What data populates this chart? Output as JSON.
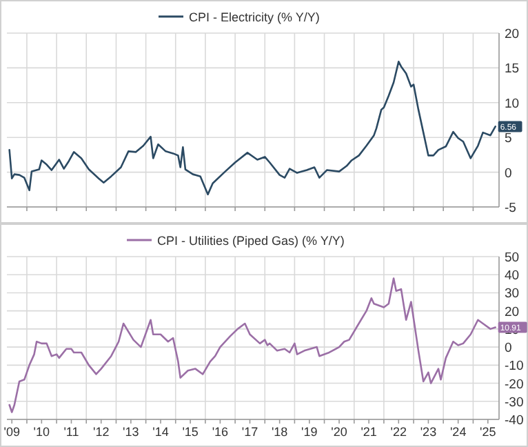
{
  "chart_data": [
    {
      "type": "line",
      "tick_labels": "y",
      "grid": true,
      "legend": "top",
      "xlim": [
        "2009-05-01",
        "2025-11-15"
      ],
      "xticks": [
        {
          "value": "2010-01-01",
          "label": null
        },
        {
          "value": "2011-01-01",
          "label": null
        },
        {
          "value": "2012-01-01",
          "label": null
        },
        {
          "value": "2013-01-01",
          "label": null
        },
        {
          "value": "2014-01-01",
          "label": null
        },
        {
          "value": "2015-01-01",
          "label": null
        },
        {
          "value": "2016-01-01",
          "label": null
        },
        {
          "value": "2017-01-01",
          "label": null
        },
        {
          "value": "2018-01-01",
          "label": null
        },
        {
          "value": "2019-01-01",
          "label": null
        },
        {
          "value": "2020-01-01",
          "label": null
        },
        {
          "value": "2021-01-01",
          "label": null
        },
        {
          "value": "2022-01-01",
          "label": null
        },
        {
          "value": "2023-01-01",
          "label": null
        },
        {
          "value": "2024-01-01",
          "label": null
        },
        {
          "value": "2025-01-01",
          "label": null
        }
      ],
      "ylim": [
        -5,
        20
      ],
      "yticks": [
        -5,
        0,
        5,
        10,
        15,
        20
      ],
      "annotations": [
        {
          "text": "6.56",
          "x": "2025-10",
          "y": 6.56
        }
      ],
      "series": [
        {
          "name": "CPI - Electricity (% Y/Y)",
          "color": "#2b4a63",
          "x": [
            "2009-06",
            "2009-07",
            "2009-08",
            "2009-10",
            "2009-12",
            "2010-02",
            "2010-03",
            "2010-06",
            "2010-07",
            "2010-09",
            "2010-11",
            "2011-02",
            "2011-04",
            "2011-06",
            "2011-08",
            "2011-11",
            "2012-02",
            "2012-06",
            "2012-08",
            "2012-11",
            "2013-03",
            "2013-06",
            "2013-09",
            "2013-12",
            "2014-03",
            "2014-04",
            "2014-06",
            "2014-09",
            "2014-12",
            "2015-02",
            "2015-03",
            "2015-04",
            "2015-05",
            "2015-08",
            "2015-11",
            "2016-02",
            "2016-04",
            "2016-09",
            "2017-01",
            "2017-06",
            "2017-10",
            "2018-01",
            "2018-03",
            "2018-07",
            "2018-09",
            "2018-11",
            "2019-02",
            "2019-06",
            "2019-09",
            "2019-11",
            "2020-02",
            "2020-07",
            "2020-10",
            "2020-12",
            "2021-03",
            "2021-06",
            "2021-09",
            "2021-10",
            "2021-12",
            "2022-01",
            "2022-03",
            "2022-05",
            "2022-07",
            "2022-08",
            "2022-10",
            "2022-12",
            "2023-01",
            "2023-03",
            "2023-05",
            "2023-07",
            "2023-09",
            "2023-11",
            "2024-02",
            "2024-05",
            "2024-07",
            "2024-09",
            "2024-12",
            "2025-03",
            "2025-05",
            "2025-08",
            "2025-10"
          ],
          "values": [
            3.2,
            -0.9,
            -0.3,
            -0.4,
            -0.8,
            -2.6,
            0.1,
            0.4,
            1.7,
            1.1,
            0.3,
            1.8,
            0.5,
            1.6,
            2.9,
            2.0,
            0.4,
            -0.9,
            -1.5,
            -0.6,
            0.7,
            3.0,
            2.9,
            3.8,
            5.1,
            2.0,
            4.0,
            3.0,
            2.7,
            2.4,
            0.7,
            3.6,
            0.4,
            -0.3,
            -0.6,
            -3.2,
            -1.6,
            0.1,
            1.4,
            2.8,
            1.8,
            2.2,
            1.4,
            -0.4,
            -0.8,
            0.5,
            -0.1,
            0.3,
            0.7,
            -0.8,
            0.3,
            0.1,
            0.9,
            1.7,
            2.4,
            3.8,
            5.3,
            6.3,
            9.0,
            9.3,
            11.0,
            12.9,
            15.9,
            15.2,
            14.2,
            12.3,
            12.6,
            9.0,
            5.7,
            2.4,
            2.4,
            3.2,
            3.7,
            5.8,
            4.9,
            4.4,
            2.0,
            3.8,
            5.7,
            5.3,
            6.56
          ]
        }
      ]
    },
    {
      "type": "line",
      "grid": true,
      "legend": "top",
      "xlim": [
        "2009-05-01",
        "2025-11-15"
      ],
      "xticks": [
        {
          "value": "2009-07-01",
          "label": "'09"
        },
        {
          "value": "2010-01-01",
          "label": null
        },
        {
          "value": "2010-07-01",
          "label": "'10"
        },
        {
          "value": "2011-01-01",
          "label": null
        },
        {
          "value": "2011-07-01",
          "label": "'11"
        },
        {
          "value": "2012-01-01",
          "label": null
        },
        {
          "value": "2012-07-01",
          "label": "'12"
        },
        {
          "value": "2013-01-01",
          "label": null
        },
        {
          "value": "2013-07-01",
          "label": "'13"
        },
        {
          "value": "2014-01-01",
          "label": null
        },
        {
          "value": "2014-07-01",
          "label": "'14"
        },
        {
          "value": "2015-01-01",
          "label": null
        },
        {
          "value": "2015-07-01",
          "label": "'15"
        },
        {
          "value": "2016-01-01",
          "label": null
        },
        {
          "value": "2016-07-01",
          "label": "'16"
        },
        {
          "value": "2017-01-01",
          "label": null
        },
        {
          "value": "2017-07-01",
          "label": "'17"
        },
        {
          "value": "2018-01-01",
          "label": null
        },
        {
          "value": "2018-07-01",
          "label": "'18"
        },
        {
          "value": "2019-01-01",
          "label": null
        },
        {
          "value": "2019-07-01",
          "label": "'19"
        },
        {
          "value": "2020-01-01",
          "label": null
        },
        {
          "value": "2020-07-01",
          "label": "'20"
        },
        {
          "value": "2021-01-01",
          "label": null
        },
        {
          "value": "2021-07-01",
          "label": "'21"
        },
        {
          "value": "2022-01-01",
          "label": null
        },
        {
          "value": "2022-07-01",
          "label": "'22"
        },
        {
          "value": "2023-01-01",
          "label": null
        },
        {
          "value": "2023-07-01",
          "label": "'23"
        },
        {
          "value": "2024-01-01",
          "label": null
        },
        {
          "value": "2024-07-01",
          "label": "'24"
        },
        {
          "value": "2025-01-01",
          "label": null
        },
        {
          "value": "2025-07-01",
          "label": "'25"
        }
      ],
      "ylim": [
        -40,
        50
      ],
      "yticks": [
        -40,
        -30,
        -20,
        -10,
        0,
        10,
        20,
        30,
        40,
        50
      ],
      "annotations": [
        {
          "text": "10.91",
          "x": "2025-10",
          "y": 10.91
        }
      ],
      "series": [
        {
          "name": "CPI - Utilities (Piped Gas) (% Y/Y)",
          "color": "#9b6fa6",
          "x": [
            "2009-06",
            "2009-07",
            "2009-08",
            "2009-10",
            "2009-12",
            "2010-02",
            "2010-04",
            "2010-05",
            "2010-07",
            "2010-09",
            "2010-11",
            "2011-01",
            "2011-02",
            "2011-05",
            "2011-07",
            "2011-08",
            "2011-11",
            "2012-02",
            "2012-05",
            "2012-07",
            "2012-11",
            "2013-02",
            "2013-04",
            "2013-08",
            "2013-11",
            "2014-03",
            "2014-04",
            "2014-07",
            "2014-10",
            "2014-12",
            "2015-02",
            "2015-03",
            "2015-06",
            "2015-09",
            "2015-12",
            "2016-03",
            "2016-05",
            "2016-07",
            "2016-11",
            "2017-02",
            "2017-05",
            "2017-07",
            "2017-11",
            "2018-01",
            "2018-02",
            "2018-03",
            "2018-06",
            "2018-09",
            "2018-11",
            "2019-01",
            "2019-02",
            "2019-05",
            "2019-10",
            "2019-11",
            "2020-03",
            "2020-07",
            "2020-09",
            "2020-11",
            "2021-02",
            "2021-06",
            "2021-08",
            "2021-09",
            "2022-01",
            "2022-03",
            "2022-05",
            "2022-06",
            "2022-08",
            "2022-10",
            "2022-12",
            "2023-03",
            "2023-05",
            "2023-07",
            "2023-08",
            "2023-11",
            "2023-12",
            "2024-02",
            "2024-05",
            "2024-07",
            "2024-09",
            "2024-12",
            "2025-03",
            "2025-05",
            "2025-08",
            "2025-10"
          ],
          "values": [
            -32,
            -36,
            -32,
            -19,
            -18,
            -10,
            -4,
            3,
            2,
            2,
            -5,
            -4,
            -6,
            -1,
            -1,
            -3,
            -3,
            -10,
            -15,
            -12,
            -5,
            3,
            13,
            4,
            0,
            15,
            7,
            7,
            3,
            5,
            -8,
            -17,
            -13,
            -12,
            -15,
            -8,
            -5,
            0,
            6,
            10,
            13,
            7,
            2,
            4,
            1,
            2,
            -2,
            -1,
            -3,
            2,
            -4,
            -2,
            0,
            -5,
            -3,
            0,
            3,
            4,
            11,
            20,
            27,
            24,
            22,
            24,
            38,
            31,
            32,
            15,
            25,
            -2,
            -19,
            -14,
            -20,
            -12,
            -18,
            -6,
            3,
            1,
            2,
            7,
            15,
            13,
            10,
            10.91
          ]
        }
      ]
    }
  ]
}
